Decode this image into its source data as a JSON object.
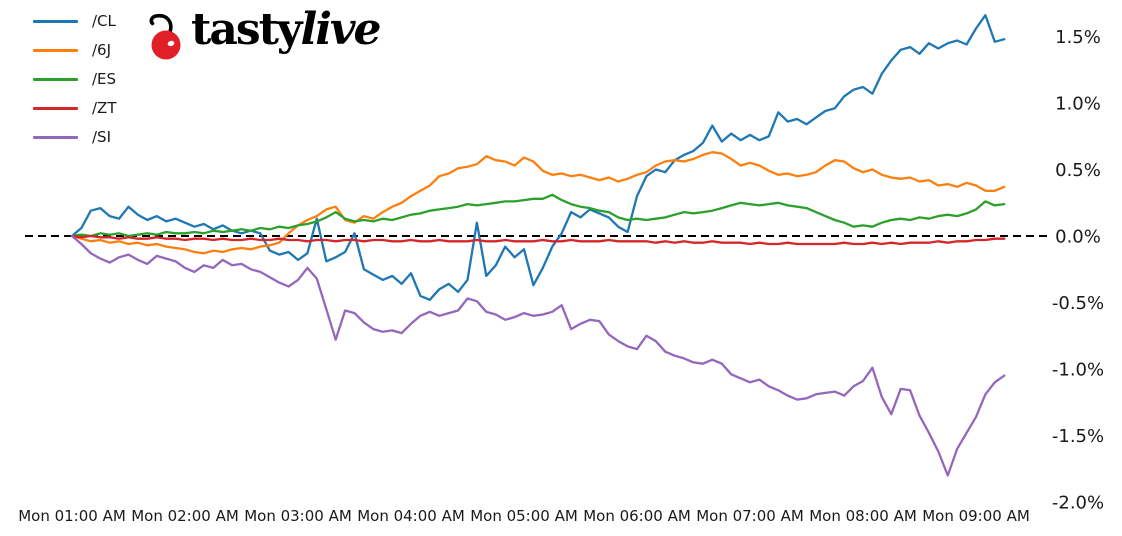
{
  "logo": {
    "brand_prefix": "tasty",
    "brand_suffix": "live",
    "cherry_color": "#e01f26",
    "stem_color": "#000000"
  },
  "legend": {
    "items": [
      {
        "label": "/CL"
      },
      {
        "label": "/6J"
      },
      {
        "label": "/ES"
      },
      {
        "label": "/ZT"
      },
      {
        "label": "/SI"
      }
    ]
  },
  "chart_data": {
    "type": "line",
    "title": "",
    "xlabel": "",
    "ylabel": "",
    "grid": false,
    "legend_position": "upper left",
    "ylim": [
      -2.0,
      1.75
    ],
    "x_unit": "minutes after Mon 01:00 AM",
    "x_step_minutes": 5,
    "x_tick_minutes": [
      0,
      60,
      120,
      180,
      240,
      300,
      360,
      420,
      480
    ],
    "x_tick_labels": [
      "Mon 01:00 AM",
      "Mon 02:00 AM",
      "Mon 03:00 AM",
      "Mon 04:00 AM",
      "Mon 05:00 AM",
      "Mon 06:00 AM",
      "Mon 07:00 AM",
      "Mon 08:00 AM",
      "Mon 09:00 AM"
    ],
    "y_tick_values": [
      1.5,
      1.0,
      0.5,
      0.0,
      -0.5,
      -1.0,
      -1.5,
      -2.0
    ],
    "y_tick_labels": [
      "1.5%",
      "1.0%",
      "0.5%",
      "0.0%",
      "-0.5%",
      "-1.0%",
      "-1.5%",
      "-2.0%"
    ],
    "zero_line": {
      "value": 0.0,
      "style": "dashed",
      "color": "#000000"
    },
    "series": [
      {
        "name": "/CL",
        "color": "#1f77b4",
        "values": [
          0,
          0.06,
          0.19,
          0.21,
          0.15,
          0.13,
          0.22,
          0.16,
          0.12,
          0.15,
          0.11,
          0.13,
          0.1,
          0.07,
          0.09,
          0.05,
          0.08,
          0.04,
          0.02,
          0.04,
          0.02,
          -0.11,
          -0.14,
          -0.12,
          -0.18,
          -0.13,
          0.13,
          -0.19,
          -0.16,
          -0.12,
          0.02,
          -0.25,
          -0.29,
          -0.33,
          -0.3,
          -0.36,
          -0.28,
          -0.45,
          -0.48,
          -0.4,
          -0.36,
          -0.42,
          -0.33,
          0.1,
          -0.3,
          -0.22,
          -0.08,
          -0.16,
          -0.1,
          -0.37,
          -0.24,
          -0.08,
          0.02,
          0.18,
          0.14,
          0.2,
          0.17,
          0.14,
          0.07,
          0.03,
          0.3,
          0.45,
          0.5,
          0.48,
          0.57,
          0.61,
          0.64,
          0.7,
          0.83,
          0.71,
          0.77,
          0.72,
          0.76,
          0.72,
          0.75,
          0.93,
          0.86,
          0.88,
          0.84,
          0.89,
          0.94,
          0.96,
          1.05,
          1.1,
          1.12,
          1.07,
          1.22,
          1.32,
          1.4,
          1.42,
          1.37,
          1.45,
          1.41,
          1.45,
          1.47,
          1.44,
          1.56,
          1.66,
          1.46,
          1.48
        ]
      },
      {
        "name": "/6J",
        "color": "#ff7f0e",
        "values": [
          0,
          -0.02,
          -0.04,
          -0.03,
          -0.05,
          -0.04,
          -0.06,
          -0.05,
          -0.07,
          -0.06,
          -0.08,
          -0.09,
          -0.1,
          -0.12,
          -0.13,
          -0.11,
          -0.12,
          -0.1,
          -0.09,
          -0.1,
          -0.08,
          -0.07,
          -0.05,
          0.02,
          0.08,
          0.12,
          0.15,
          0.2,
          0.22,
          0.12,
          0.1,
          0.15,
          0.13,
          0.18,
          0.22,
          0.25,
          0.3,
          0.34,
          0.38,
          0.45,
          0.47,
          0.51,
          0.52,
          0.54,
          0.6,
          0.57,
          0.56,
          0.53,
          0.59,
          0.56,
          0.49,
          0.46,
          0.47,
          0.45,
          0.46,
          0.44,
          0.42,
          0.44,
          0.41,
          0.43,
          0.46,
          0.48,
          0.53,
          0.56,
          0.57,
          0.56,
          0.58,
          0.61,
          0.63,
          0.62,
          0.58,
          0.53,
          0.55,
          0.53,
          0.49,
          0.46,
          0.47,
          0.45,
          0.46,
          0.48,
          0.53,
          0.57,
          0.56,
          0.51,
          0.48,
          0.5,
          0.46,
          0.44,
          0.43,
          0.44,
          0.41,
          0.42,
          0.38,
          0.39,
          0.37,
          0.4,
          0.38,
          0.34,
          0.34,
          0.37
        ]
      },
      {
        "name": "/ES",
        "color": "#2ca02c",
        "values": [
          0,
          0.01,
          0,
          0.02,
          0.01,
          0.02,
          0,
          0.01,
          0.02,
          0.01,
          0.03,
          0.02,
          0.02,
          0.03,
          0.02,
          0.04,
          0.03,
          0.04,
          0.05,
          0.04,
          0.06,
          0.05,
          0.07,
          0.06,
          0.08,
          0.09,
          0.11,
          0.14,
          0.18,
          0.13,
          0.11,
          0.12,
          0.11,
          0.13,
          0.12,
          0.14,
          0.16,
          0.17,
          0.19,
          0.2,
          0.21,
          0.22,
          0.24,
          0.23,
          0.24,
          0.25,
          0.26,
          0.26,
          0.27,
          0.28,
          0.28,
          0.31,
          0.27,
          0.24,
          0.22,
          0.21,
          0.19,
          0.18,
          0.14,
          0.12,
          0.13,
          0.12,
          0.13,
          0.14,
          0.16,
          0.18,
          0.17,
          0.18,
          0.19,
          0.21,
          0.23,
          0.25,
          0.24,
          0.23,
          0.24,
          0.25,
          0.23,
          0.22,
          0.21,
          0.18,
          0.15,
          0.12,
          0.1,
          0.07,
          0.08,
          0.07,
          0.1,
          0.12,
          0.13,
          0.12,
          0.14,
          0.13,
          0.15,
          0.16,
          0.15,
          0.17,
          0.2,
          0.26,
          0.23,
          0.24
        ]
      },
      {
        "name": "/ZT",
        "color": "#d62728",
        "values": [
          0,
          -0.01,
          0,
          -0.01,
          -0.01,
          -0.02,
          -0.01,
          -0.02,
          -0.02,
          -0.01,
          -0.02,
          -0.02,
          -0.03,
          -0.02,
          -0.02,
          -0.03,
          -0.02,
          -0.03,
          -0.03,
          -0.02,
          -0.03,
          -0.03,
          -0.02,
          -0.03,
          -0.03,
          -0.04,
          -0.03,
          -0.03,
          -0.04,
          -0.03,
          -0.03,
          -0.04,
          -0.03,
          -0.03,
          -0.04,
          -0.04,
          -0.03,
          -0.04,
          -0.04,
          -0.03,
          -0.04,
          -0.04,
          -0.04,
          -0.03,
          -0.04,
          -0.04,
          -0.03,
          -0.04,
          -0.04,
          -0.04,
          -0.03,
          -0.04,
          -0.04,
          -0.03,
          -0.04,
          -0.04,
          -0.04,
          -0.03,
          -0.04,
          -0.04,
          -0.04,
          -0.04,
          -0.05,
          -0.04,
          -0.05,
          -0.04,
          -0.05,
          -0.05,
          -0.04,
          -0.05,
          -0.05,
          -0.05,
          -0.06,
          -0.05,
          -0.06,
          -0.06,
          -0.05,
          -0.06,
          -0.06,
          -0.06,
          -0.06,
          -0.06,
          -0.05,
          -0.06,
          -0.06,
          -0.05,
          -0.06,
          -0.05,
          -0.06,
          -0.05,
          -0.05,
          -0.05,
          -0.04,
          -0.05,
          -0.04,
          -0.04,
          -0.03,
          -0.03,
          -0.02,
          -0.02
        ]
      },
      {
        "name": "/SI",
        "color": "#9467bd",
        "values": [
          0,
          -0.06,
          -0.13,
          -0.17,
          -0.2,
          -0.16,
          -0.14,
          -0.18,
          -0.21,
          -0.15,
          -0.17,
          -0.19,
          -0.24,
          -0.27,
          -0.22,
          -0.24,
          -0.18,
          -0.22,
          -0.21,
          -0.25,
          -0.27,
          -0.31,
          -0.35,
          -0.38,
          -0.33,
          -0.24,
          -0.32,
          -0.55,
          -0.78,
          -0.56,
          -0.58,
          -0.65,
          -0.7,
          -0.72,
          -0.71,
          -0.73,
          -0.66,
          -0.6,
          -0.57,
          -0.6,
          -0.58,
          -0.56,
          -0.47,
          -0.49,
          -0.57,
          -0.59,
          -0.63,
          -0.61,
          -0.58,
          -0.6,
          -0.59,
          -0.57,
          -0.52,
          -0.7,
          -0.66,
          -0.63,
          -0.64,
          -0.74,
          -0.79,
          -0.83,
          -0.85,
          -0.75,
          -0.79,
          -0.87,
          -0.9,
          -0.92,
          -0.95,
          -0.96,
          -0.93,
          -0.96,
          -1.04,
          -1.07,
          -1.1,
          -1.08,
          -1.13,
          -1.16,
          -1.2,
          -1.23,
          -1.22,
          -1.19,
          -1.18,
          -1.17,
          -1.2,
          -1.13,
          -1.09,
          -0.99,
          -1.21,
          -1.34,
          -1.15,
          -1.16,
          -1.35,
          -1.48,
          -1.62,
          -1.8,
          -1.6,
          -1.48,
          -1.36,
          -1.19,
          -1.1,
          -1.05
        ]
      }
    ]
  }
}
